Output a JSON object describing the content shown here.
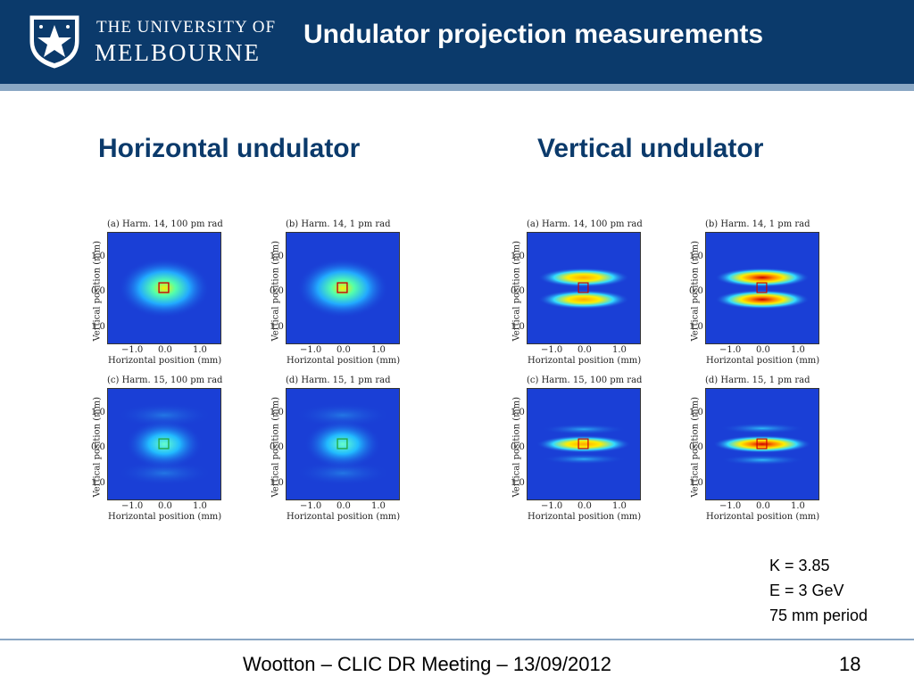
{
  "header": {
    "university_line1": "THE UNIVERSITY OF",
    "university_line2": "MELBOURNE",
    "title": "Undulator projection measurements",
    "background_color": "#0b3a6b",
    "rule_color": "#8aa7c4"
  },
  "columns": {
    "left_heading": "Horizontal undulator",
    "right_heading": "Vertical undulator",
    "heading_color": "#0b3a6b"
  },
  "figures": {
    "horizontal": [
      {
        "title": "(a) Harm. 14, 100 pm rad",
        "xlabel": "Horizontal position (mm)",
        "ylabel": "Vertical position (mm)",
        "yticks": [
          "1.0",
          "0.0",
          "1.0"
        ],
        "xticks": [
          "−1.0",
          "0.0",
          "1.0"
        ],
        "marker_color": "red"
      },
      {
        "title": "(b) Harm. 14, 1 pm rad",
        "xlabel": "Horizontal position (mm)",
        "ylabel": "Vertical position (mm)",
        "yticks": [
          "1.0",
          "0.0",
          "1.0"
        ],
        "xticks": [
          "−1.0",
          "0.0",
          "1.0"
        ],
        "marker_color": "red"
      },
      {
        "title": "(c) Harm. 15, 100 pm rad",
        "xlabel": "Horizontal position (mm)",
        "ylabel": "Vertical position (mm)",
        "yticks": [
          "1.0",
          "0.0",
          "1.0"
        ],
        "xticks": [
          "−1.0",
          "0.0",
          "1.0"
        ],
        "marker_color": "green"
      },
      {
        "title": "(d) Harm. 15, 1 pm rad",
        "xlabel": "Horizontal position (mm)",
        "ylabel": "Vertical position (mm)",
        "yticks": [
          "1.0",
          "0.0",
          "1.0"
        ],
        "xticks": [
          "−1.0",
          "0.0",
          "1.0"
        ],
        "marker_color": "green"
      }
    ],
    "vertical": [
      {
        "title": "(a) Harm. 14, 100 pm rad",
        "xlabel": "Horizontal position (mm)",
        "ylabel": "Vertical position (mm)",
        "yticks": [
          "1.0",
          "0.0",
          "1.0"
        ],
        "xticks": [
          "−1.0",
          "0.0",
          "1.0"
        ],
        "marker_color": "red"
      },
      {
        "title": "(b) Harm. 14, 1 pm rad",
        "xlabel": "Horizontal position (mm)",
        "ylabel": "Vertical position (mm)",
        "yticks": [
          "1.0",
          "0.0",
          "1.0"
        ],
        "xticks": [
          "−1.0",
          "0.0",
          "1.0"
        ],
        "marker_color": "red"
      },
      {
        "title": "(c) Harm. 15, 100 pm rad",
        "xlabel": "Horizontal position (mm)",
        "ylabel": "Vertical position (mm)",
        "yticks": [
          "1.0",
          "0.0",
          "1.0"
        ],
        "xticks": [
          "−1.0",
          "0.0",
          "1.0"
        ],
        "marker_color": "red"
      },
      {
        "title": "(d) Harm. 15, 1 pm rad",
        "xlabel": "Horizontal position (mm)",
        "ylabel": "Vertical position (mm)",
        "yticks": [
          "1.0",
          "0.0",
          "1.0"
        ],
        "xticks": [
          "−1.0",
          "0.0",
          "1.0"
        ],
        "marker_color": "red"
      }
    ]
  },
  "params": {
    "k": "K = 3.85",
    "e": "E = 3 GeV",
    "period": "75 mm period"
  },
  "footer": {
    "text": "Wootton – CLIC DR Meeting – 13/09/2012",
    "slide_number": "18"
  }
}
